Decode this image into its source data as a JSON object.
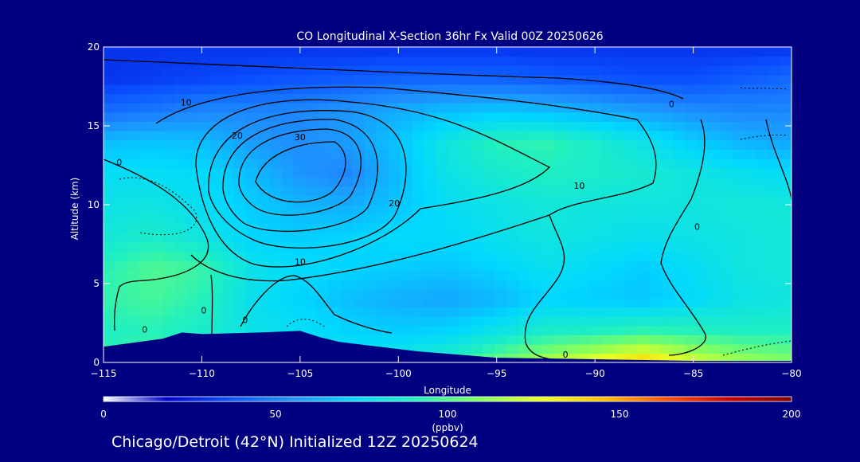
{
  "chart_data": {
    "type": "heatmap",
    "title": "CO Longitudinal X-Section 36hr  Fx Valid 00Z 20250626",
    "xlabel": "Longitude",
    "ylabel": "Altitude (km)",
    "xlim": [
      -115,
      -80
    ],
    "ylim": [
      0,
      20
    ],
    "x_ticks": [
      -115,
      -110,
      -105,
      -100,
      -95,
      -90,
      -85,
      -80
    ],
    "y_ticks": [
      0,
      5,
      10,
      15,
      20
    ],
    "colorbar": {
      "label": "(ppbv)",
      "range": [
        0,
        200
      ],
      "ticks": [
        0,
        50,
        100,
        150,
        200
      ],
      "colors": [
        "#ffffff",
        "#0000cd",
        "#0a50ff",
        "#1e90ff",
        "#00d8ff",
        "#20f0c0",
        "#80ff60",
        "#e8ff20",
        "#ffc000",
        "#ff5000",
        "#cc0000",
        "#800000"
      ]
    },
    "grid_lon": [
      -115,
      -112.5,
      -110,
      -107.5,
      -105,
      -102.5,
      -100,
      -97.5,
      -95,
      -92.5,
      -90,
      -87.5,
      -85,
      -82.5,
      -80
    ],
    "grid_alt": [
      0,
      2,
      4,
      6,
      8,
      10,
      12,
      14,
      16,
      18,
      20
    ],
    "values": [
      [
        95,
        98,
        96,
        90,
        82,
        80,
        84,
        92,
        106,
        118,
        130,
        142,
        125,
        115,
        110
      ],
      [
        90,
        92,
        88,
        80,
        76,
        72,
        70,
        72,
        80,
        88,
        90,
        94,
        92,
        90,
        90
      ],
      [
        94,
        98,
        92,
        78,
        72,
        66,
        62,
        60,
        64,
        72,
        70,
        68,
        74,
        80,
        82
      ],
      [
        92,
        100,
        96,
        80,
        74,
        72,
        70,
        68,
        72,
        78,
        74,
        70,
        76,
        82,
        84
      ],
      [
        84,
        88,
        82,
        72,
        70,
        72,
        74,
        74,
        78,
        82,
        80,
        78,
        80,
        82,
        84
      ],
      [
        80,
        82,
        76,
        70,
        64,
        62,
        68,
        76,
        80,
        84,
        82,
        82,
        82,
        84,
        84
      ],
      [
        76,
        76,
        74,
        66,
        56,
        52,
        66,
        80,
        86,
        90,
        88,
        86,
        82,
        78,
        74
      ],
      [
        66,
        68,
        66,
        58,
        54,
        58,
        68,
        82,
        92,
        94,
        88,
        80,
        70,
        64,
        60
      ],
      [
        44,
        48,
        52,
        52,
        52,
        56,
        62,
        66,
        68,
        66,
        62,
        58,
        54,
        52,
        52
      ],
      [
        30,
        32,
        34,
        36,
        38,
        40,
        42,
        42,
        42,
        40,
        38,
        36,
        36,
        40,
        44
      ],
      [
        30,
        30,
        30,
        30,
        30,
        30,
        30,
        30,
        30,
        30,
        30,
        30,
        30,
        30,
        30
      ]
    ],
    "terrain": [
      [
        -115,
        1.0
      ],
      [
        -112,
        1.5
      ],
      [
        -111,
        1.9
      ],
      [
        -110,
        1.8
      ],
      [
        -107,
        1.9
      ],
      [
        -105,
        2.0
      ],
      [
        -104,
        1.6
      ],
      [
        -103,
        1.3
      ],
      [
        -101,
        1.0
      ],
      [
        -99,
        0.7
      ],
      [
        -95,
        0.3
      ],
      [
        -90,
        0.2
      ],
      [
        -85,
        0.1
      ],
      [
        -80,
        0.1
      ]
    ],
    "contour_labels": [
      {
        "text": "10",
        "lon": -110.8,
        "alt": 16.5
      },
      {
        "text": "20",
        "lon": -108.2,
        "alt": 14.4
      },
      {
        "text": "30",
        "lon": -105.0,
        "alt": 14.3
      },
      {
        "text": "0",
        "lon": -114.2,
        "alt": 12.7
      },
      {
        "text": "20",
        "lon": -100.2,
        "alt": 10.1
      },
      {
        "text": "10",
        "lon": -105.0,
        "alt": 6.4
      },
      {
        "text": "10",
        "lon": -90.8,
        "alt": 11.2
      },
      {
        "text": "0",
        "lon": -86.1,
        "alt": 16.4
      },
      {
        "text": "0",
        "lon": -84.8,
        "alt": 8.6
      },
      {
        "text": "0",
        "lon": -112.9,
        "alt": 2.1
      },
      {
        "text": "0",
        "lon": -109.9,
        "alt": 3.3
      },
      {
        "text": "0",
        "lon": -107.8,
        "alt": 2.7
      },
      {
        "text": "0",
        "lon": -91.5,
        "alt": 0.5
      }
    ]
  },
  "footer": {
    "caption": "Chicago/Detroit (42°N) Initialized 12Z 20250624"
  }
}
